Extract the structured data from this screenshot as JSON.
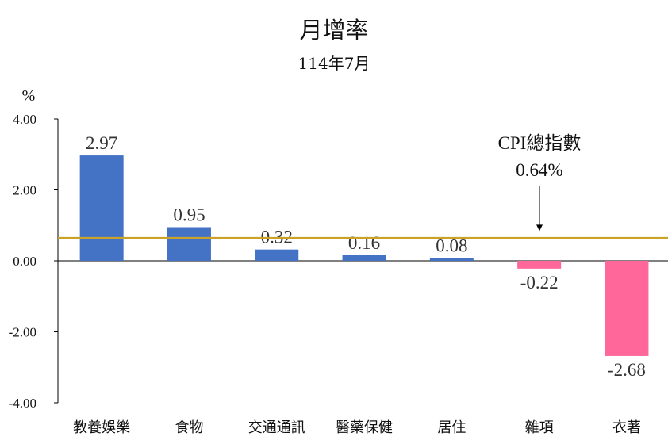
{
  "chart_data": {
    "type": "bar",
    "title": "月增率",
    "subtitle": "114年7月",
    "ylabel": "%",
    "ylim": [
      -4,
      4
    ],
    "yticks": [
      4,
      2,
      0,
      -2,
      -4
    ],
    "ytick_labels": [
      "4.00",
      "2.00",
      "0.00",
      "-2.00",
      "-4.00"
    ],
    "categories": [
      "教養娛樂",
      "食物",
      "交通通訊",
      "醫藥保健",
      "居住",
      "雜項",
      "衣著"
    ],
    "values": [
      2.97,
      0.95,
      0.32,
      0.16,
      0.08,
      -0.22,
      -2.68
    ],
    "value_labels": [
      "2.97",
      "0.95",
      "0.32",
      "0.16",
      "0.08",
      "-0.22",
      "-2.68"
    ],
    "reference_line": {
      "value": 0.64,
      "label_line1": "CPI總指數",
      "label_line2": "0.64%"
    },
    "grid": false,
    "legend": "none"
  },
  "colors": {
    "positive": "#4472c4",
    "negative": "#ff6699",
    "reference": "#c9a227",
    "axis": "#000000"
  }
}
